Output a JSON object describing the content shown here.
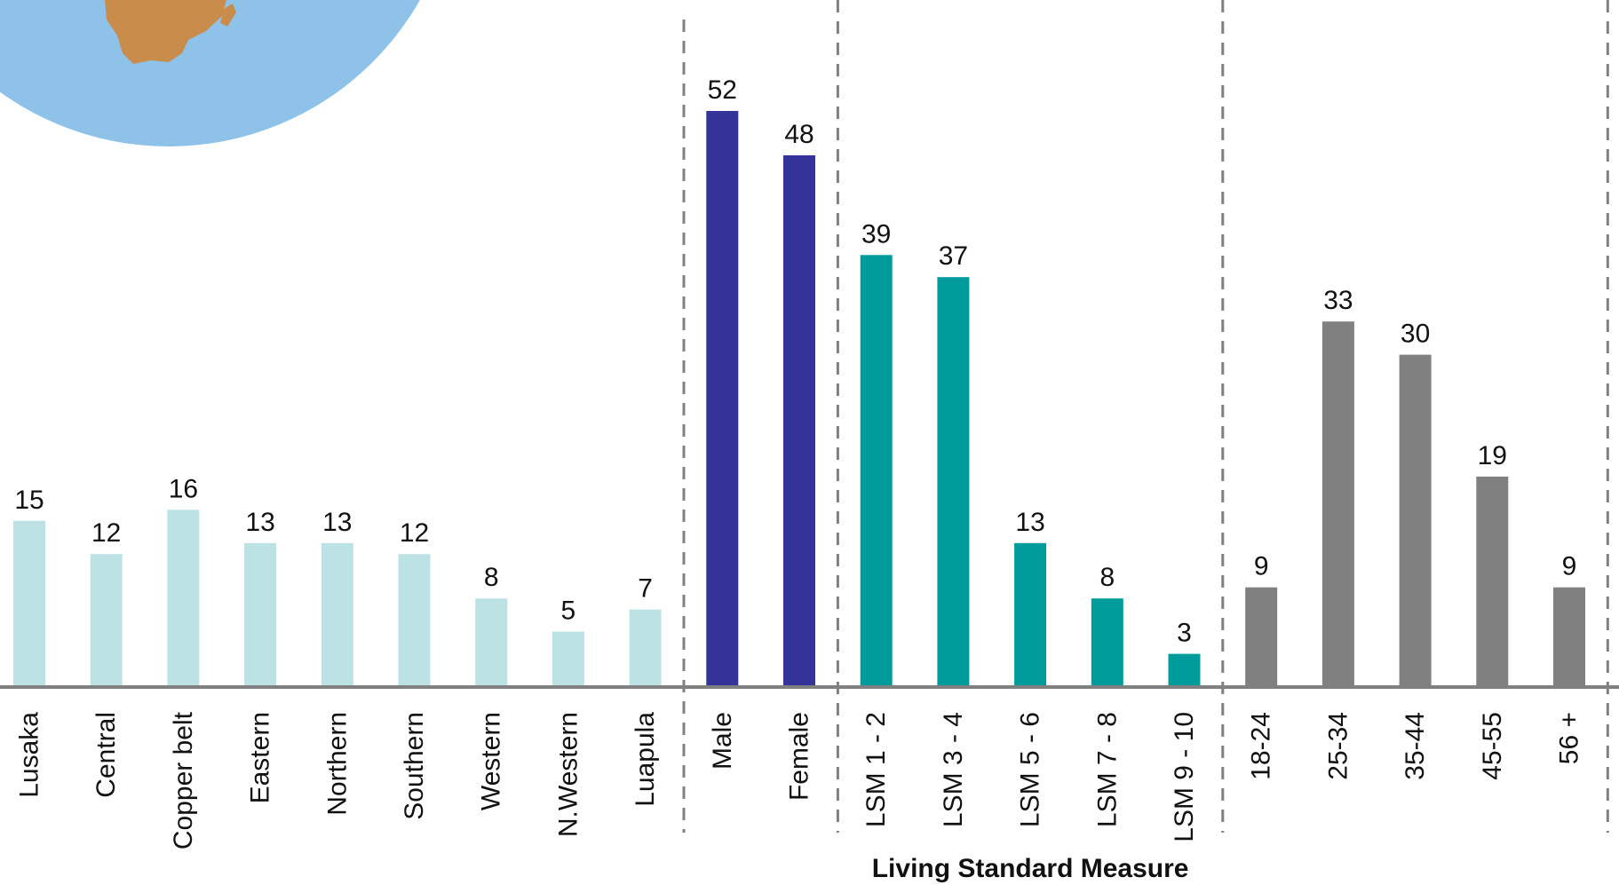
{
  "chart_data": {
    "type": "bar",
    "title": "",
    "xlabel": "",
    "ylabel": "",
    "ylim": [
      0,
      57
    ],
    "grid": false,
    "legend": "none",
    "groups": [
      {
        "name": "",
        "color": "#bde2e4",
        "categories": [
          "Lusaka",
          "Central",
          "Copper belt",
          "Eastern",
          "Northern",
          "Southern",
          "Western",
          "N.Western",
          "Luapula"
        ],
        "values": [
          15,
          12,
          16,
          13,
          13,
          12,
          8,
          5,
          7
        ]
      },
      {
        "name": "",
        "color": "#333399",
        "categories": [
          "Male",
          "Female"
        ],
        "values": [
          52,
          48
        ]
      },
      {
        "name": "Living Standard Measure",
        "color": "#009c9c",
        "categories": [
          "LSM 1 - 2",
          "LSM 3 - 4",
          "LSM 5 - 6",
          "LSM 7 - 8",
          "LSM 9 - 10"
        ],
        "values": [
          39,
          37,
          13,
          8,
          3
        ]
      },
      {
        "name": "",
        "color": "#808080",
        "categories": [
          "18-24",
          "25-34",
          "35-44",
          "45-55",
          "56 +"
        ],
        "values": [
          9,
          33,
          30,
          19,
          9
        ]
      }
    ]
  },
  "decor": {
    "globe_color": "#8fc2e8",
    "continent_color": "#c98c4a",
    "axis_color": "#808080",
    "divider_color": "#808080"
  }
}
